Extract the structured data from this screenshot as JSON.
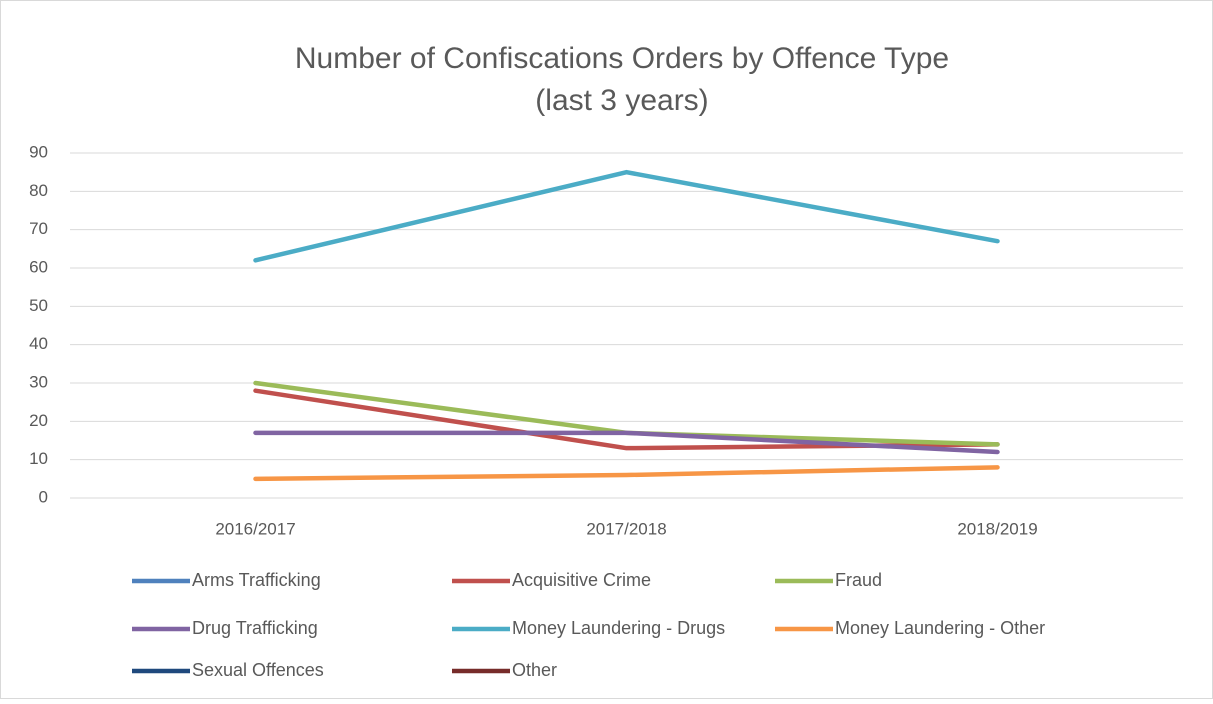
{
  "chart_data": {
    "type": "line",
    "title": [
      "Number of Confiscations Orders by Offence Type",
      "(last 3 years)"
    ],
    "categories": [
      "2016/2017",
      "2017/2018",
      "2018/2019"
    ],
    "series": [
      {
        "name": "Arms Trafficking",
        "color": "#4f81bd",
        "values": [
          null,
          null,
          null
        ]
      },
      {
        "name": "Acquisitive Crime",
        "color": "#c0504d",
        "values": [
          28,
          13,
          14
        ]
      },
      {
        "name": "Fraud",
        "color": "#9bbb59",
        "values": [
          30,
          17,
          14
        ]
      },
      {
        "name": "Drug Trafficking",
        "color": "#8064a2",
        "values": [
          17,
          17,
          12
        ]
      },
      {
        "name": "Money Laundering - Drugs",
        "color": "#4bacc6",
        "values": [
          62,
          85,
          67
        ]
      },
      {
        "name": "Money Laundering - Other",
        "color": "#f79646",
        "values": [
          5,
          6,
          8
        ]
      },
      {
        "name": "Sexual Offences",
        "color": "#1f497d",
        "values": [
          null,
          null,
          null
        ]
      },
      {
        "name": "Other",
        "color": "#772c2a",
        "values": [
          null,
          null,
          null
        ]
      }
    ],
    "ylim": [
      0,
      90
    ],
    "yticks": [
      0,
      10,
      20,
      30,
      40,
      50,
      60,
      70,
      80,
      90
    ],
    "grid": true,
    "legend": "bottom"
  }
}
